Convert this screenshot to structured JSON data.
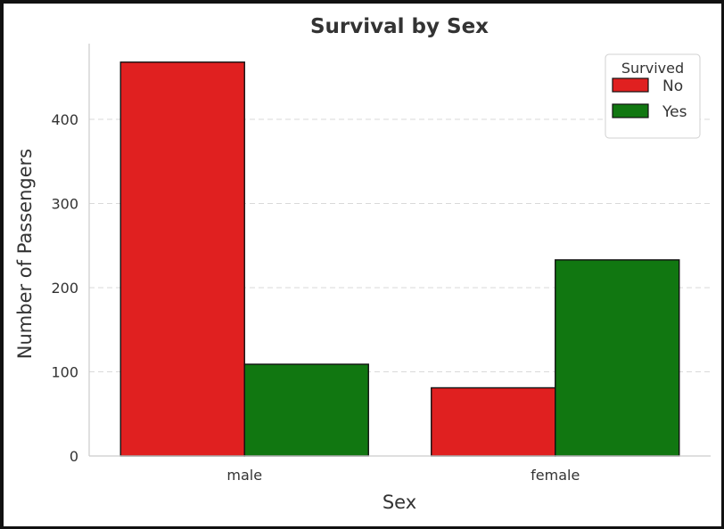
{
  "chart_data": {
    "type": "bar",
    "title": "Survival by Sex",
    "xlabel": "Sex",
    "ylabel": "Number of Passengers",
    "categories": [
      "male",
      "female"
    ],
    "series": [
      {
        "name": "No",
        "values": [
          468,
          81
        ],
        "color": "#e02020"
      },
      {
        "name": "Yes",
        "values": [
          109,
          233
        ],
        "color": "#117711"
      }
    ],
    "ylim": [
      0,
      490
    ],
    "yticks": [
      0,
      100,
      200,
      300,
      400
    ],
    "grid": "horizontal dashed",
    "legend": {
      "title": "Survived",
      "placement": "top-right"
    }
  }
}
